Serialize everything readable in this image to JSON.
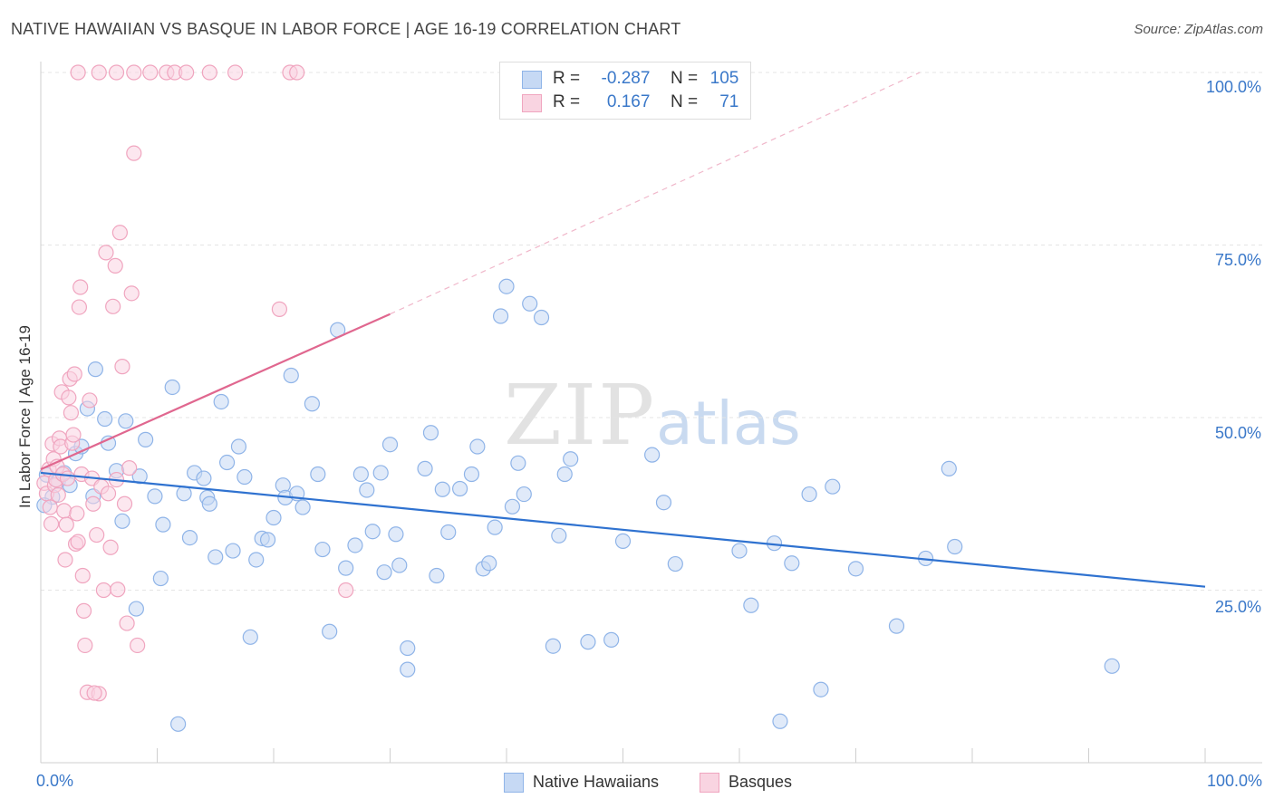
{
  "header": {
    "title": "NATIVE HAWAIIAN VS BASQUE IN LABOR FORCE | AGE 16-19 CORRELATION CHART",
    "source": "Source: ZipAtlas.com"
  },
  "watermark": {
    "zip": "ZIP",
    "atlas": "atlas"
  },
  "legend": {
    "rows": [
      {
        "r_label": "R =",
        "r_value": "-0.287",
        "n_label": "N =",
        "n_value": "105"
      },
      {
        "r_label": "R =",
        "r_value": "0.167",
        "n_label": "N =",
        "n_value": "71"
      }
    ]
  },
  "chart_data": {
    "type": "scatter",
    "title": "NATIVE HAWAIIAN VS BASQUE IN LABOR FORCE | AGE 16-19 CORRELATION CHART",
    "xlabel": "",
    "ylabel": "In Labor Force | Age 16-19",
    "xlim": [
      0,
      100
    ],
    "ylim": [
      0,
      100
    ],
    "x_tick_labels": [
      "0.0%",
      "100.0%"
    ],
    "y_tick_labels": [
      "100.0%",
      "75.0%",
      "50.0%",
      "25.0%"
    ],
    "y_ticks": [
      100,
      75,
      50,
      25
    ],
    "grid": true,
    "legend_position": "top-center",
    "series": [
      {
        "name": "Native Hawaiians",
        "color": "#8fb4e8",
        "fill": "#c6d9f4",
        "trend_color": "#2f72d0",
        "r": -0.287,
        "n": 105,
        "trend": {
          "x0": 0,
          "y0": 42.0,
          "x1": 100,
          "y1": 25.5
        },
        "points": [
          [
            0.5,
            41.7
          ],
          [
            1.0,
            38.5
          ],
          [
            1.5,
            40.8
          ],
          [
            2.0,
            42.0
          ],
          [
            2.5,
            40.2
          ],
          [
            3.0,
            44.8
          ],
          [
            3.5,
            45.8
          ],
          [
            4.0,
            51.3
          ],
          [
            4.5,
            38.6
          ],
          [
            4.7,
            57.0
          ],
          [
            5.5,
            49.8
          ],
          [
            5.8,
            46.3
          ],
          [
            6.5,
            42.3
          ],
          [
            7.0,
            35.0
          ],
          [
            7.3,
            49.5
          ],
          [
            8.2,
            22.3
          ],
          [
            8.5,
            41.5
          ],
          [
            9.0,
            46.8
          ],
          [
            9.8,
            38.6
          ],
          [
            10.3,
            26.7
          ],
          [
            10.5,
            34.5
          ],
          [
            11.3,
            54.4
          ],
          [
            11.8,
            5.6
          ],
          [
            12.3,
            39.0
          ],
          [
            12.8,
            32.6
          ],
          [
            13.2,
            42.0
          ],
          [
            14.0,
            41.2
          ],
          [
            14.3,
            38.4
          ],
          [
            14.5,
            37.5
          ],
          [
            15.0,
            29.8
          ],
          [
            15.5,
            52.3
          ],
          [
            16.0,
            43.5
          ],
          [
            16.5,
            30.7
          ],
          [
            17.0,
            45.8
          ],
          [
            17.5,
            41.4
          ],
          [
            18.0,
            18.2
          ],
          [
            18.5,
            29.4
          ],
          [
            19.0,
            32.5
          ],
          [
            19.5,
            32.3
          ],
          [
            20.0,
            35.5
          ],
          [
            20.8,
            40.2
          ],
          [
            21.0,
            38.4
          ],
          [
            21.5,
            56.1
          ],
          [
            22.0,
            39.0
          ],
          [
            22.5,
            37.0
          ],
          [
            23.3,
            52.0
          ],
          [
            23.8,
            41.8
          ],
          [
            24.2,
            30.9
          ],
          [
            24.8,
            19.0
          ],
          [
            25.5,
            62.7
          ],
          [
            26.2,
            28.2
          ],
          [
            27.0,
            31.5
          ],
          [
            27.5,
            41.8
          ],
          [
            28.0,
            39.5
          ],
          [
            28.5,
            33.5
          ],
          [
            29.2,
            42.0
          ],
          [
            29.5,
            27.6
          ],
          [
            30.0,
            46.1
          ],
          [
            30.5,
            33.1
          ],
          [
            30.8,
            28.6
          ],
          [
            31.5,
            16.6
          ],
          [
            31.5,
            13.5
          ],
          [
            33.0,
            42.6
          ],
          [
            33.5,
            47.8
          ],
          [
            34.0,
            27.1
          ],
          [
            34.5,
            39.6
          ],
          [
            35.0,
            33.4
          ],
          [
            36.0,
            39.7
          ],
          [
            37.0,
            41.8
          ],
          [
            37.5,
            45.8
          ],
          [
            38.0,
            28.1
          ],
          [
            38.5,
            28.9
          ],
          [
            39.0,
            34.1
          ],
          [
            39.5,
            64.7
          ],
          [
            40.0,
            69.0
          ],
          [
            40.5,
            37.1
          ],
          [
            41.0,
            43.4
          ],
          [
            41.5,
            38.9
          ],
          [
            42.0,
            66.5
          ],
          [
            43.0,
            64.5
          ],
          [
            44.0,
            16.9
          ],
          [
            44.5,
            32.9
          ],
          [
            45.0,
            41.8
          ],
          [
            45.5,
            44.0
          ],
          [
            47.0,
            17.5
          ],
          [
            49.0,
            17.8
          ],
          [
            50.0,
            32.1
          ],
          [
            52.5,
            44.6
          ],
          [
            53.5,
            37.7
          ],
          [
            54.5,
            28.8
          ],
          [
            60.0,
            30.7
          ],
          [
            61.0,
            22.8
          ],
          [
            63.0,
            31.8
          ],
          [
            63.5,
            6.0
          ],
          [
            64.5,
            28.9
          ],
          [
            66.0,
            38.9
          ],
          [
            67.0,
            10.6
          ],
          [
            68.0,
            40.0
          ],
          [
            70.0,
            28.1
          ],
          [
            73.5,
            19.8
          ],
          [
            76.0,
            29.6
          ],
          [
            78.0,
            42.6
          ],
          [
            78.5,
            31.3
          ],
          [
            92.0,
            14.0
          ],
          [
            0.3,
            37.3
          ]
        ]
      },
      {
        "name": "Basques",
        "color": "#f0a5bf",
        "fill": "#f9d4e1",
        "trend_color": "#e0678f",
        "r": 0.167,
        "n": 71,
        "trend": {
          "x0": 0,
          "y0": 42.5,
          "x1": 30,
          "y1": 65.0
        },
        "trend_ext": {
          "x0": 30,
          "y0": 65.0,
          "x1": 75.5,
          "y1": 100.0
        },
        "points": [
          [
            0.3,
            40.5
          ],
          [
            0.5,
            39.0
          ],
          [
            0.7,
            42.5
          ],
          [
            0.8,
            37.0
          ],
          [
            0.9,
            34.6
          ],
          [
            1.0,
            46.2
          ],
          [
            1.1,
            44.0
          ],
          [
            1.2,
            40.2
          ],
          [
            1.3,
            41.0
          ],
          [
            1.4,
            42.9
          ],
          [
            1.5,
            38.8
          ],
          [
            1.6,
            47.0
          ],
          [
            1.7,
            45.8
          ],
          [
            1.8,
            53.7
          ],
          [
            1.9,
            41.8
          ],
          [
            2.0,
            36.5
          ],
          [
            2.1,
            29.4
          ],
          [
            2.2,
            34.5
          ],
          [
            2.3,
            41.2
          ],
          [
            2.4,
            52.9
          ],
          [
            2.5,
            55.6
          ],
          [
            2.6,
            50.7
          ],
          [
            2.7,
            46.3
          ],
          [
            2.8,
            47.5
          ],
          [
            2.9,
            56.3
          ],
          [
            3.0,
            31.7
          ],
          [
            3.1,
            36.1
          ],
          [
            3.2,
            32.0
          ],
          [
            3.3,
            66.0
          ],
          [
            3.4,
            68.9
          ],
          [
            3.5,
            41.8
          ],
          [
            3.6,
            27.1
          ],
          [
            3.7,
            22.0
          ],
          [
            3.8,
            17.0
          ],
          [
            4.0,
            10.2
          ],
          [
            4.2,
            52.5
          ],
          [
            4.4,
            41.2
          ],
          [
            4.5,
            37.5
          ],
          [
            4.8,
            33.0
          ],
          [
            5.0,
            10.0
          ],
          [
            5.2,
            40.0
          ],
          [
            5.4,
            25.0
          ],
          [
            5.6,
            73.9
          ],
          [
            5.8,
            39.0
          ],
          [
            6.0,
            31.2
          ],
          [
            6.2,
            66.1
          ],
          [
            6.4,
            72.0
          ],
          [
            6.5,
            41.0
          ],
          [
            6.6,
            25.1
          ],
          [
            6.8,
            76.8
          ],
          [
            7.0,
            57.4
          ],
          [
            7.2,
            37.5
          ],
          [
            7.4,
            20.2
          ],
          [
            7.6,
            42.7
          ],
          [
            7.8,
            68.0
          ],
          [
            8.0,
            88.3
          ],
          [
            8.3,
            17.0
          ],
          [
            3.2,
            100
          ],
          [
            5.0,
            100
          ],
          [
            6.5,
            100
          ],
          [
            8.0,
            100
          ],
          [
            9.4,
            100
          ],
          [
            10.8,
            100
          ],
          [
            11.5,
            100
          ],
          [
            12.5,
            100
          ],
          [
            14.5,
            100
          ],
          [
            16.7,
            100
          ],
          [
            21.4,
            100
          ],
          [
            22.0,
            100
          ],
          [
            20.5,
            65.7
          ],
          [
            26.2,
            25.0
          ],
          [
            4.6,
            10.1
          ]
        ]
      }
    ]
  },
  "bottom_legend": {
    "item1": "Native Hawaiians",
    "item2": "Basques"
  }
}
